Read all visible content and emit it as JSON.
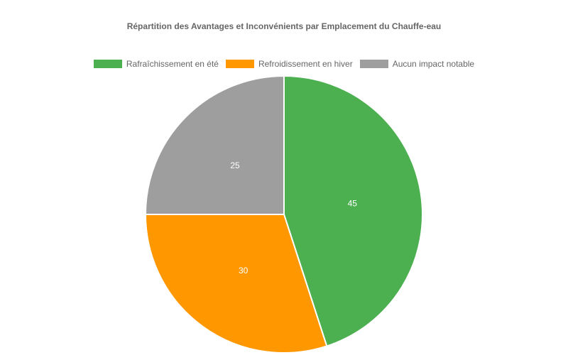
{
  "chart_data": {
    "type": "pie",
    "title": "Répartition des Avantages et Inconvénients par Emplacement du Chauffe-eau",
    "categories": [
      "Rafraîchissement en été",
      "Refroidissement en hiver",
      "Aucun impact notable"
    ],
    "values": [
      45,
      30,
      25
    ],
    "colors": [
      "#4caf50",
      "#ff9800",
      "#9e9e9e"
    ],
    "legend_position": "top",
    "data_labels": [
      "45",
      "30",
      "25"
    ]
  }
}
